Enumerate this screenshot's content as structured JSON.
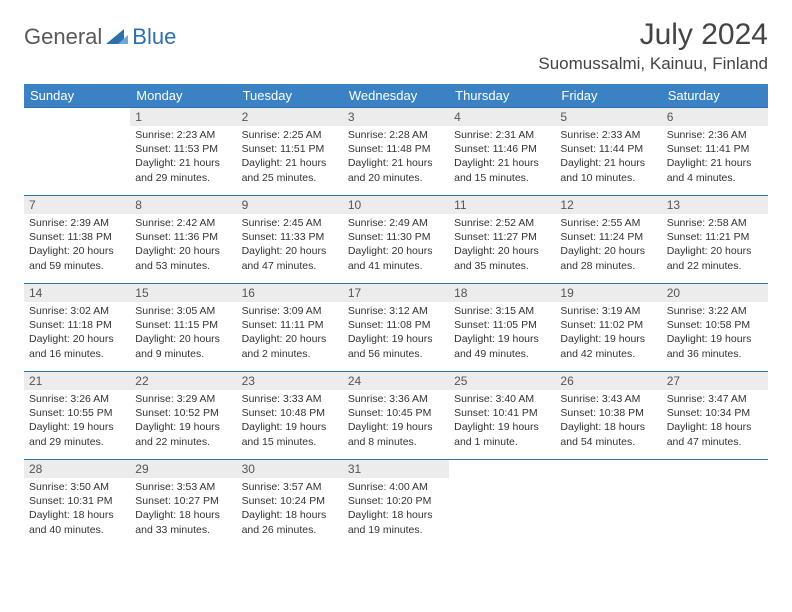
{
  "logo": {
    "general": "General",
    "blue": "Blue"
  },
  "title": "July 2024",
  "location": "Suomussalmi, Kainuu, Finland",
  "headers": [
    "Sunday",
    "Monday",
    "Tuesday",
    "Wednesday",
    "Thursday",
    "Friday",
    "Saturday"
  ],
  "colors": {
    "header_bg": "#3a82c4",
    "header_text": "#ffffff",
    "daynum_bg": "#ececec",
    "border": "#2f6fab",
    "text": "#333333",
    "title": "#444444"
  },
  "typography": {
    "title_fontsize": 30,
    "location_fontsize": 17,
    "header_fontsize": 13,
    "daynum_fontsize": 12,
    "body_fontsize": 10.5
  },
  "layout": {
    "cols": 7,
    "rows": 5,
    "first_weekday_offset": 1
  },
  "days": [
    {
      "n": 1,
      "sunrise": "2:23 AM",
      "sunset": "11:53 PM",
      "daylight": "21 hours and 29 minutes."
    },
    {
      "n": 2,
      "sunrise": "2:25 AM",
      "sunset": "11:51 PM",
      "daylight": "21 hours and 25 minutes."
    },
    {
      "n": 3,
      "sunrise": "2:28 AM",
      "sunset": "11:48 PM",
      "daylight": "21 hours and 20 minutes."
    },
    {
      "n": 4,
      "sunrise": "2:31 AM",
      "sunset": "11:46 PM",
      "daylight": "21 hours and 15 minutes."
    },
    {
      "n": 5,
      "sunrise": "2:33 AM",
      "sunset": "11:44 PM",
      "daylight": "21 hours and 10 minutes."
    },
    {
      "n": 6,
      "sunrise": "2:36 AM",
      "sunset": "11:41 PM",
      "daylight": "21 hours and 4 minutes."
    },
    {
      "n": 7,
      "sunrise": "2:39 AM",
      "sunset": "11:38 PM",
      "daylight": "20 hours and 59 minutes."
    },
    {
      "n": 8,
      "sunrise": "2:42 AM",
      "sunset": "11:36 PM",
      "daylight": "20 hours and 53 minutes."
    },
    {
      "n": 9,
      "sunrise": "2:45 AM",
      "sunset": "11:33 PM",
      "daylight": "20 hours and 47 minutes."
    },
    {
      "n": 10,
      "sunrise": "2:49 AM",
      "sunset": "11:30 PM",
      "daylight": "20 hours and 41 minutes."
    },
    {
      "n": 11,
      "sunrise": "2:52 AM",
      "sunset": "11:27 PM",
      "daylight": "20 hours and 35 minutes."
    },
    {
      "n": 12,
      "sunrise": "2:55 AM",
      "sunset": "11:24 PM",
      "daylight": "20 hours and 28 minutes."
    },
    {
      "n": 13,
      "sunrise": "2:58 AM",
      "sunset": "11:21 PM",
      "daylight": "20 hours and 22 minutes."
    },
    {
      "n": 14,
      "sunrise": "3:02 AM",
      "sunset": "11:18 PM",
      "daylight": "20 hours and 16 minutes."
    },
    {
      "n": 15,
      "sunrise": "3:05 AM",
      "sunset": "11:15 PM",
      "daylight": "20 hours and 9 minutes."
    },
    {
      "n": 16,
      "sunrise": "3:09 AM",
      "sunset": "11:11 PM",
      "daylight": "20 hours and 2 minutes."
    },
    {
      "n": 17,
      "sunrise": "3:12 AM",
      "sunset": "11:08 PM",
      "daylight": "19 hours and 56 minutes."
    },
    {
      "n": 18,
      "sunrise": "3:15 AM",
      "sunset": "11:05 PM",
      "daylight": "19 hours and 49 minutes."
    },
    {
      "n": 19,
      "sunrise": "3:19 AM",
      "sunset": "11:02 PM",
      "daylight": "19 hours and 42 minutes."
    },
    {
      "n": 20,
      "sunrise": "3:22 AM",
      "sunset": "10:58 PM",
      "daylight": "19 hours and 36 minutes."
    },
    {
      "n": 21,
      "sunrise": "3:26 AM",
      "sunset": "10:55 PM",
      "daylight": "19 hours and 29 minutes."
    },
    {
      "n": 22,
      "sunrise": "3:29 AM",
      "sunset": "10:52 PM",
      "daylight": "19 hours and 22 minutes."
    },
    {
      "n": 23,
      "sunrise": "3:33 AM",
      "sunset": "10:48 PM",
      "daylight": "19 hours and 15 minutes."
    },
    {
      "n": 24,
      "sunrise": "3:36 AM",
      "sunset": "10:45 PM",
      "daylight": "19 hours and 8 minutes."
    },
    {
      "n": 25,
      "sunrise": "3:40 AM",
      "sunset": "10:41 PM",
      "daylight": "19 hours and 1 minute."
    },
    {
      "n": 26,
      "sunrise": "3:43 AM",
      "sunset": "10:38 PM",
      "daylight": "18 hours and 54 minutes."
    },
    {
      "n": 27,
      "sunrise": "3:47 AM",
      "sunset": "10:34 PM",
      "daylight": "18 hours and 47 minutes."
    },
    {
      "n": 28,
      "sunrise": "3:50 AM",
      "sunset": "10:31 PM",
      "daylight": "18 hours and 40 minutes."
    },
    {
      "n": 29,
      "sunrise": "3:53 AM",
      "sunset": "10:27 PM",
      "daylight": "18 hours and 33 minutes."
    },
    {
      "n": 30,
      "sunrise": "3:57 AM",
      "sunset": "10:24 PM",
      "daylight": "18 hours and 26 minutes."
    },
    {
      "n": 31,
      "sunrise": "4:00 AM",
      "sunset": "10:20 PM",
      "daylight": "18 hours and 19 minutes."
    }
  ]
}
